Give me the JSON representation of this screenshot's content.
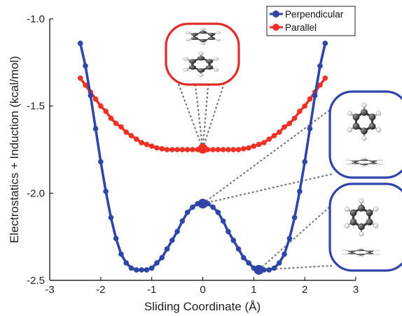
{
  "chart_data": {
    "type": "line",
    "title": "",
    "xlabel": "Sliding Coordinate (Å)",
    "ylabel": "Electrostatics + Induction (kcal/mol)",
    "xlim": [
      -3,
      3
    ],
    "ylim": [
      -2.5,
      -1.0
    ],
    "xticks": [
      "-3",
      "-2",
      "-1",
      "0",
      "1",
      "2",
      "3"
    ],
    "yticks": [
      "-1.0",
      "-1.5",
      "-2.0",
      "-2.5"
    ],
    "legend_position": "top-right",
    "grid": false,
    "x": [
      -2.4,
      -2.3,
      -2.2,
      -2.1,
      -2.0,
      -1.9,
      -1.8,
      -1.7,
      -1.6,
      -1.5,
      -1.4,
      -1.3,
      -1.2,
      -1.1,
      -1.0,
      -0.9,
      -0.8,
      -0.7,
      -0.6,
      -0.5,
      -0.4,
      -0.3,
      -0.2,
      -0.1,
      0.0,
      0.1,
      0.2,
      0.3,
      0.4,
      0.5,
      0.6,
      0.7,
      0.8,
      0.9,
      1.0,
      1.1,
      1.2,
      1.3,
      1.4,
      1.5,
      1.6,
      1.7,
      1.8,
      1.9,
      2.0,
      2.1,
      2.2,
      2.3,
      2.4
    ],
    "series": [
      {
        "name": "Perpendicular",
        "color": "#2f45a8",
        "values": [
          -1.14,
          -1.27,
          -1.44,
          -1.63,
          -1.82,
          -1.99,
          -2.14,
          -2.26,
          -2.35,
          -2.4,
          -2.43,
          -2.44,
          -2.44,
          -2.44,
          -2.43,
          -2.4,
          -2.37,
          -2.32,
          -2.27,
          -2.22,
          -2.16,
          -2.11,
          -2.08,
          -2.06,
          -2.06,
          -2.06,
          -2.08,
          -2.11,
          -2.16,
          -2.22,
          -2.27,
          -2.32,
          -2.37,
          -2.4,
          -2.43,
          -2.44,
          -2.44,
          -2.44,
          -2.43,
          -2.4,
          -2.35,
          -2.26,
          -2.14,
          -1.99,
          -1.82,
          -1.63,
          -1.44,
          -1.27,
          -1.14
        ],
        "highlighted_points": [
          {
            "x": 0.0,
            "y": -2.06
          },
          {
            "x": 1.1,
            "y": -2.44
          }
        ]
      },
      {
        "name": "Parallel",
        "color": "#ee3124",
        "values": [
          -1.34,
          -1.38,
          -1.42,
          -1.46,
          -1.5,
          -1.53,
          -1.57,
          -1.6,
          -1.62,
          -1.65,
          -1.67,
          -1.69,
          -1.71,
          -1.72,
          -1.73,
          -1.74,
          -1.745,
          -1.75,
          -1.75,
          -1.75,
          -1.75,
          -1.75,
          -1.75,
          -1.75,
          -1.75,
          -1.75,
          -1.75,
          -1.75,
          -1.75,
          -1.75,
          -1.75,
          -1.75,
          -1.745,
          -1.74,
          -1.73,
          -1.72,
          -1.71,
          -1.69,
          -1.67,
          -1.65,
          -1.62,
          -1.6,
          -1.57,
          -1.53,
          -1.5,
          -1.46,
          -1.42,
          -1.38,
          -1.34
        ],
        "highlighted_points": [
          {
            "x": 0.0,
            "y": -1.745
          }
        ]
      }
    ],
    "insets": [
      {
        "kind": "molecule-pair",
        "orientation": "parallel",
        "frame": "#e02b26",
        "points_to_series": "Parallel",
        "x": 0.0
      },
      {
        "kind": "molecule-pair",
        "orientation": "perpendicular",
        "frame": "#2f45a8",
        "points_to_series": "Perpendicular",
        "x": 0.0
      },
      {
        "kind": "molecule-pair",
        "orientation": "perpendicular",
        "frame": "#2f45a8",
        "points_to_series": "Perpendicular",
        "x": 1.1
      }
    ]
  }
}
